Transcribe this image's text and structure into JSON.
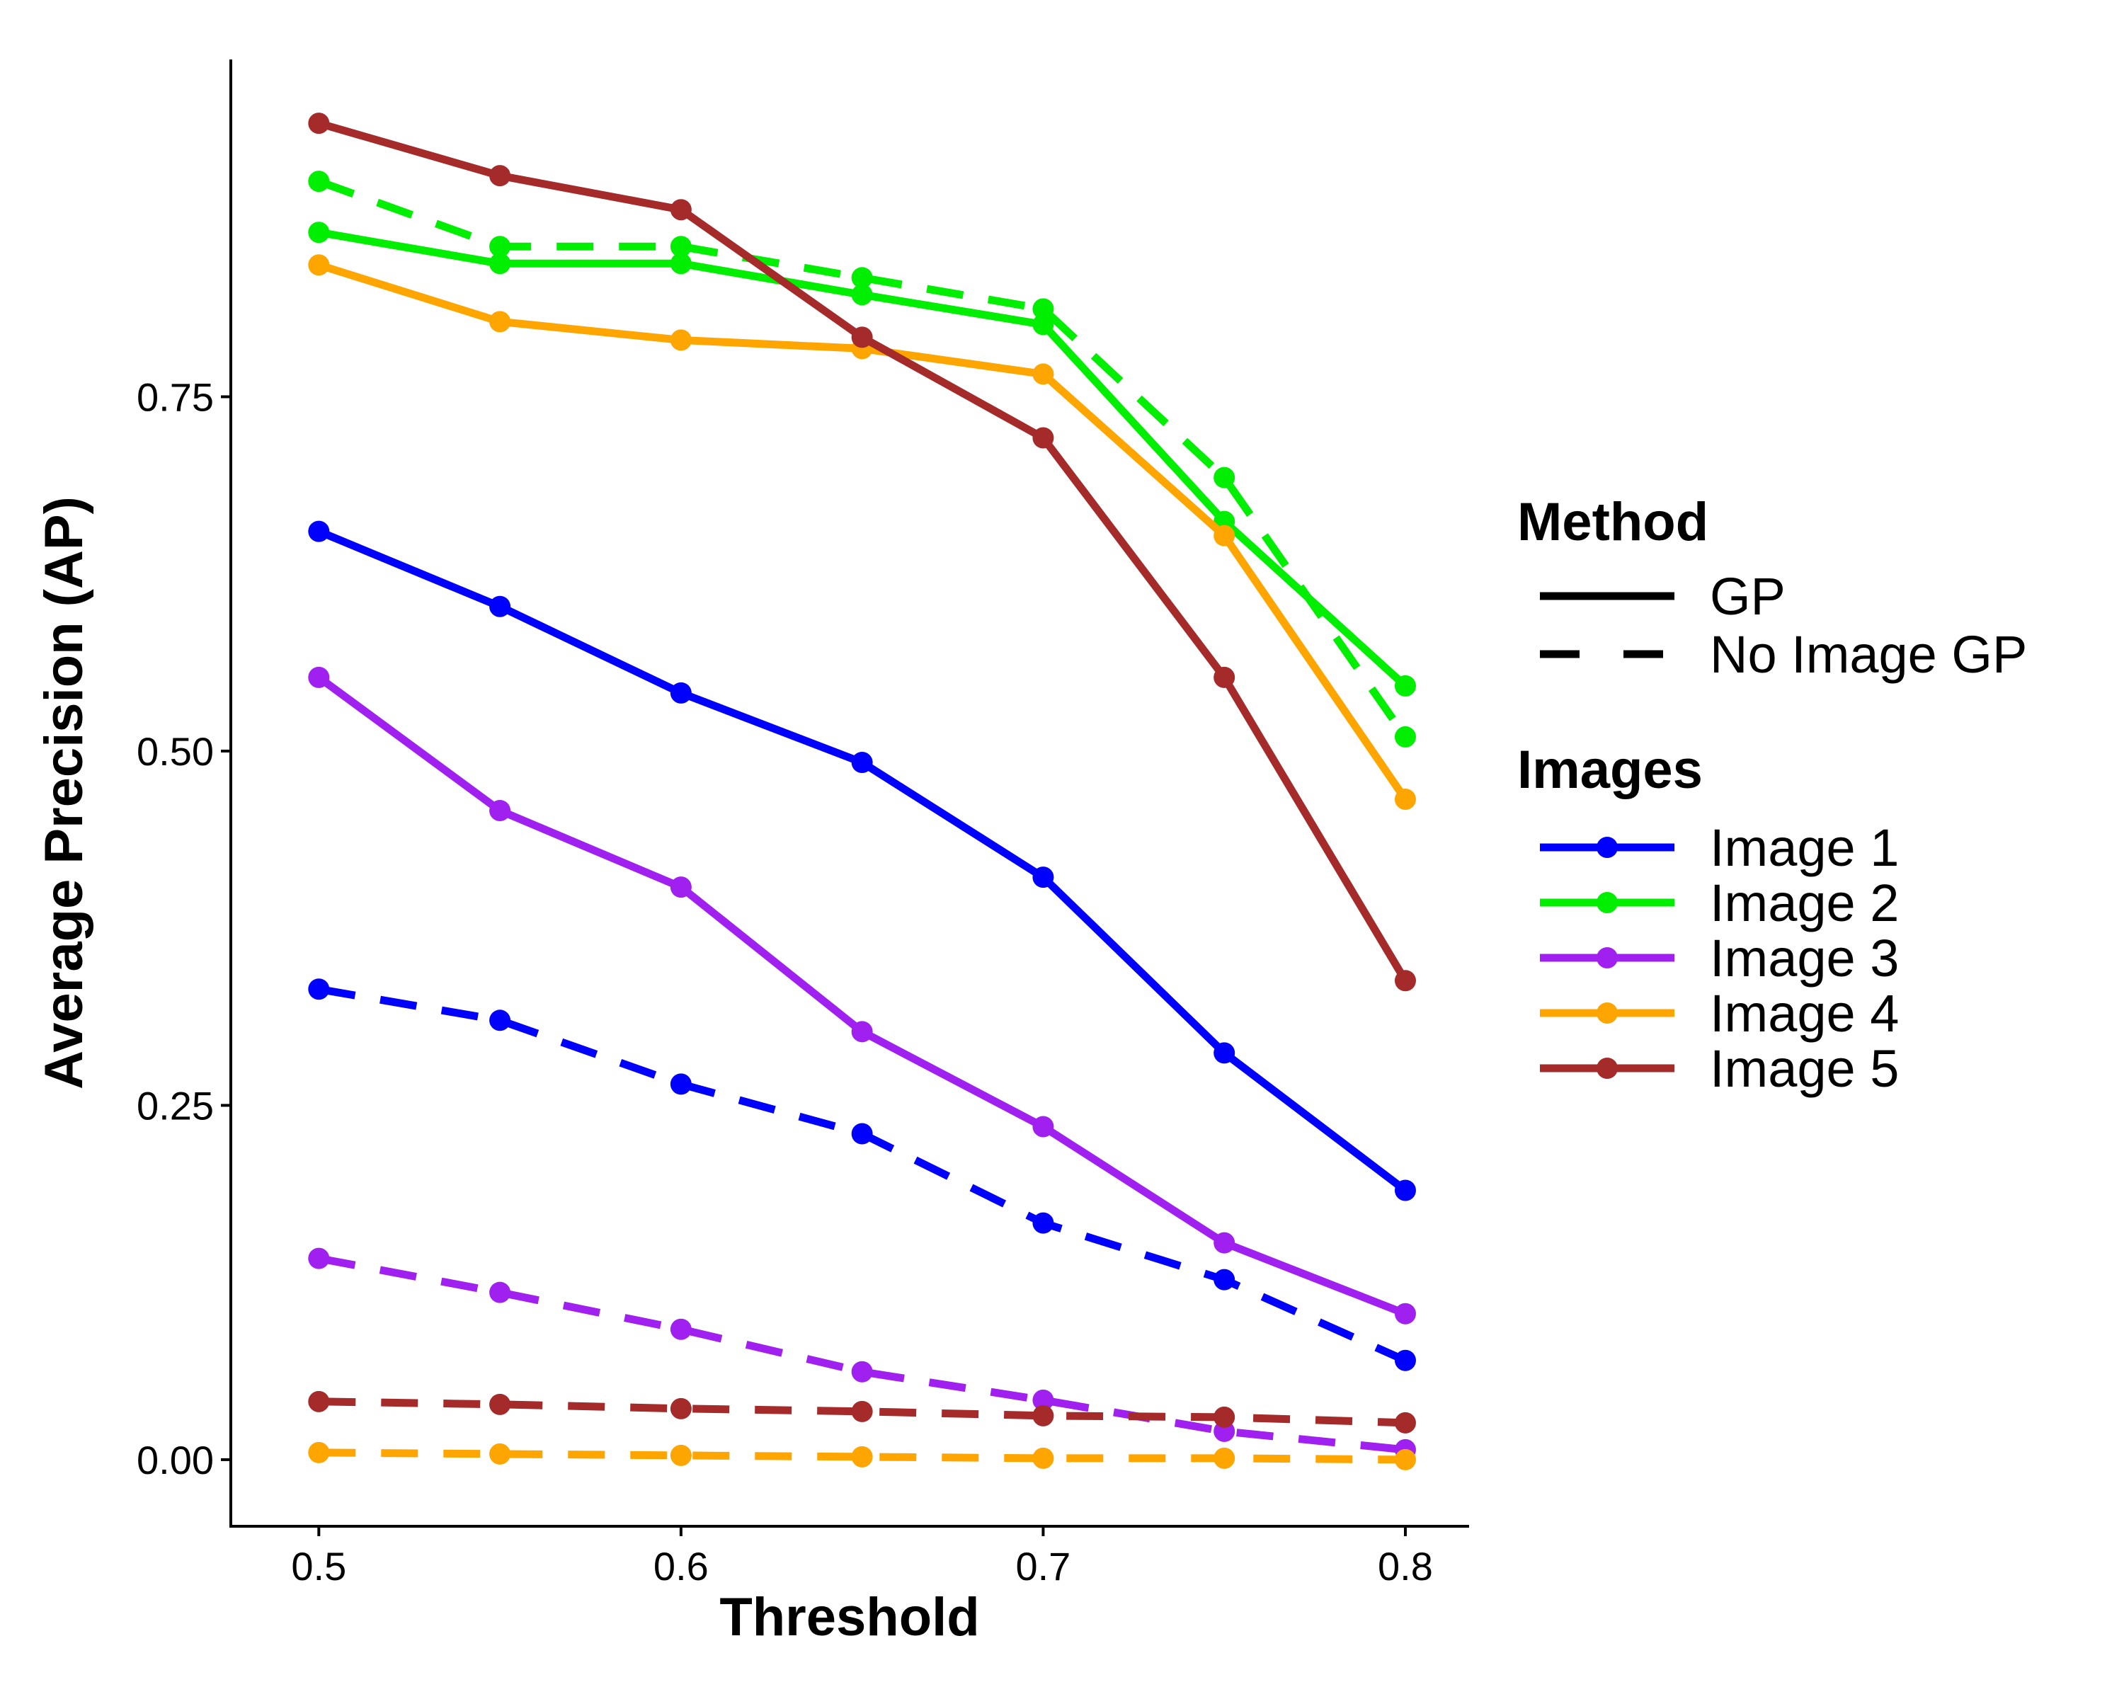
{
  "chart_data": {
    "type": "line",
    "title": "",
    "xlabel": "Threshold",
    "ylabel": "Average Precision (AP)",
    "x": [
      0.5,
      0.55,
      0.6,
      0.65,
      0.7,
      0.75,
      0.8
    ],
    "xlim": [
      0.4757,
      0.8176
    ],
    "ylim": [
      -0.047,
      0.988
    ],
    "xticks": [
      0.5,
      0.6,
      0.7,
      0.8
    ],
    "xtick_labels": [
      "0.5",
      "0.6",
      "0.7",
      "0.8"
    ],
    "yticks": [
      0.0,
      0.25,
      0.5,
      0.75
    ],
    "ytick_labels": [
      "0.00",
      "0.25",
      "0.50",
      "0.75"
    ],
    "grid": false,
    "legend_position": "right",
    "legends": {
      "method": {
        "title": "Method",
        "entries": [
          {
            "label": "GP",
            "dash": "solid"
          },
          {
            "label": "No Image GP",
            "dash": "dashed"
          }
        ]
      },
      "images": {
        "title": "Images",
        "entries": [
          {
            "label": "Image 1",
            "color": "#0000ff"
          },
          {
            "label": "Image 2",
            "color": "#00ee00"
          },
          {
            "label": "Image 3",
            "color": "#a020f0"
          },
          {
            "label": "Image 4",
            "color": "#ffa500"
          },
          {
            "label": "Image 5",
            "color": "#a52a2a"
          }
        ]
      }
    },
    "series": [
      {
        "image": "Image 1",
        "method": "GP",
        "color": "#0000ff",
        "dash": "solid",
        "values": [
          0.655,
          0.602,
          0.541,
          0.492,
          0.411,
          0.287,
          0.19
        ]
      },
      {
        "image": "Image 2",
        "method": "GP",
        "color": "#00ee00",
        "dash": "solid",
        "values": [
          0.866,
          0.844,
          0.844,
          0.822,
          0.801,
          0.662,
          0.546
        ]
      },
      {
        "image": "Image 3",
        "method": "GP",
        "color": "#a020f0",
        "dash": "solid",
        "values": [
          0.552,
          0.458,
          0.404,
          0.302,
          0.235,
          0.153,
          0.103
        ]
      },
      {
        "image": "Image 4",
        "method": "GP",
        "color": "#ffa500",
        "dash": "solid",
        "values": [
          0.843,
          0.803,
          0.79,
          0.784,
          0.766,
          0.652,
          0.466
        ]
      },
      {
        "image": "Image 5",
        "method": "GP",
        "color": "#a52a2a",
        "dash": "solid",
        "values": [
          0.943,
          0.906,
          0.882,
          0.792,
          0.721,
          0.552,
          0.338
        ]
      },
      {
        "image": "Image 1",
        "method": "No Image GP",
        "color": "#0000ff",
        "dash": "dashed",
        "values": [
          0.332,
          0.31,
          0.265,
          0.23,
          0.167,
          0.127,
          0.07
        ]
      },
      {
        "image": "Image 2",
        "method": "No Image GP",
        "color": "#00ee00",
        "dash": "dashed",
        "values": [
          0.902,
          0.856,
          0.856,
          0.834,
          0.812,
          0.693,
          0.51
        ]
      },
      {
        "image": "Image 3",
        "method": "No Image GP",
        "color": "#a020f0",
        "dash": "dashed",
        "values": [
          0.142,
          0.118,
          0.092,
          0.062,
          0.042,
          0.02,
          0.007
        ]
      },
      {
        "image": "Image 4",
        "method": "No Image GP",
        "color": "#ffa500",
        "dash": "dashed",
        "values": [
          0.005,
          0.004,
          0.003,
          0.002,
          0.001,
          0.001,
          0.0
        ]
      },
      {
        "image": "Image 5",
        "method": "No Image GP",
        "color": "#a52a2a",
        "dash": "dashed",
        "values": [
          0.041,
          0.039,
          0.036,
          0.034,
          0.031,
          0.03,
          0.026
        ]
      }
    ]
  }
}
